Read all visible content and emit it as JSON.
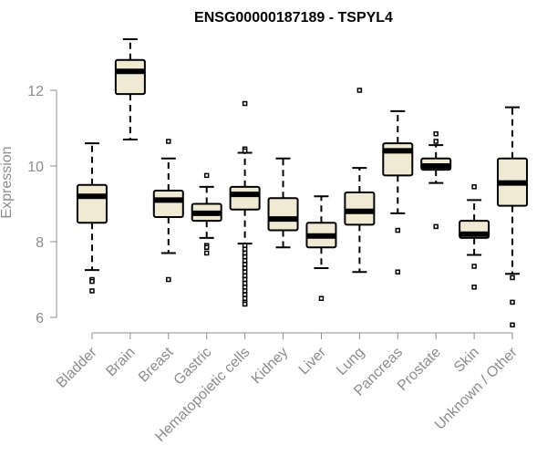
{
  "chart_data": {
    "type": "box",
    "title": "ENSG00000187189 - TSPYL4",
    "xlabel": "",
    "ylabel": "Expression",
    "ylim": [
      5.6,
      13.5
    ],
    "yticks": [
      6,
      8,
      10,
      12
    ],
    "categories": [
      "Bladder",
      "Brain",
      "Breast",
      "Gastric",
      "Hematopoietic cells",
      "Kidney",
      "Liver",
      "Lung",
      "Pancreas",
      "Prostate",
      "Skin",
      "Unknown / Other"
    ],
    "boxes": [
      {
        "name": "Bladder",
        "whisker_low": 7.25,
        "q1": 8.5,
        "median": 9.2,
        "q3": 9.5,
        "whisker_high": 10.6,
        "outliers": [
          7.0,
          6.95,
          6.7
        ]
      },
      {
        "name": "Brain",
        "whisker_low": 10.7,
        "q1": 11.9,
        "median": 12.5,
        "q3": 12.8,
        "whisker_high": 13.35,
        "outliers": []
      },
      {
        "name": "Breast",
        "whisker_low": 7.7,
        "q1": 8.65,
        "median": 9.1,
        "q3": 9.35,
        "whisker_high": 10.2,
        "outliers": [
          10.65,
          7.0
        ]
      },
      {
        "name": "Gastric",
        "whisker_low": 8.1,
        "q1": 8.55,
        "median": 8.75,
        "q3": 9.0,
        "whisker_high": 9.45,
        "outliers": [
          9.75,
          7.9,
          7.85,
          7.7
        ]
      },
      {
        "name": "Hematopoietic cells",
        "whisker_low": 7.95,
        "q1": 8.85,
        "median": 9.25,
        "q3": 9.45,
        "whisker_high": 10.35,
        "outliers": [
          11.65,
          10.45,
          10.4,
          7.9,
          7.8,
          7.7,
          7.6,
          7.5,
          7.4,
          7.3,
          7.2,
          7.1,
          7.0,
          6.9,
          6.8,
          6.7,
          6.6,
          6.5,
          6.4,
          6.35
        ]
      },
      {
        "name": "Kidney",
        "whisker_low": 7.85,
        "q1": 8.3,
        "median": 8.6,
        "q3": 9.15,
        "whisker_high": 10.2,
        "outliers": []
      },
      {
        "name": "Liver",
        "whisker_low": 7.3,
        "q1": 7.85,
        "median": 8.15,
        "q3": 8.5,
        "whisker_high": 9.2,
        "outliers": [
          6.5
        ]
      },
      {
        "name": "Lung",
        "whisker_low": 7.2,
        "q1": 8.45,
        "median": 8.8,
        "q3": 9.3,
        "whisker_high": 9.95,
        "outliers": [
          12.0
        ]
      },
      {
        "name": "Pancreas",
        "whisker_low": 8.75,
        "q1": 9.75,
        "median": 10.4,
        "q3": 10.6,
        "whisker_high": 11.45,
        "outliers": [
          8.3,
          7.2
        ]
      },
      {
        "name": "Prostate",
        "whisker_low": 9.55,
        "q1": 9.9,
        "median": 10.0,
        "q3": 10.2,
        "whisker_high": 10.55,
        "outliers": [
          10.85,
          10.65,
          8.4
        ]
      },
      {
        "name": "Skin",
        "whisker_low": 7.65,
        "q1": 8.1,
        "median": 8.2,
        "q3": 8.55,
        "whisker_high": 9.1,
        "outliers": [
          9.45,
          7.35,
          6.8
        ]
      },
      {
        "name": "Unknown / Other",
        "whisker_low": 7.15,
        "q1": 8.95,
        "median": 9.55,
        "q3": 10.2,
        "whisker_high": 11.55,
        "outliers": [
          7.05,
          6.4,
          5.8
        ]
      }
    ]
  }
}
